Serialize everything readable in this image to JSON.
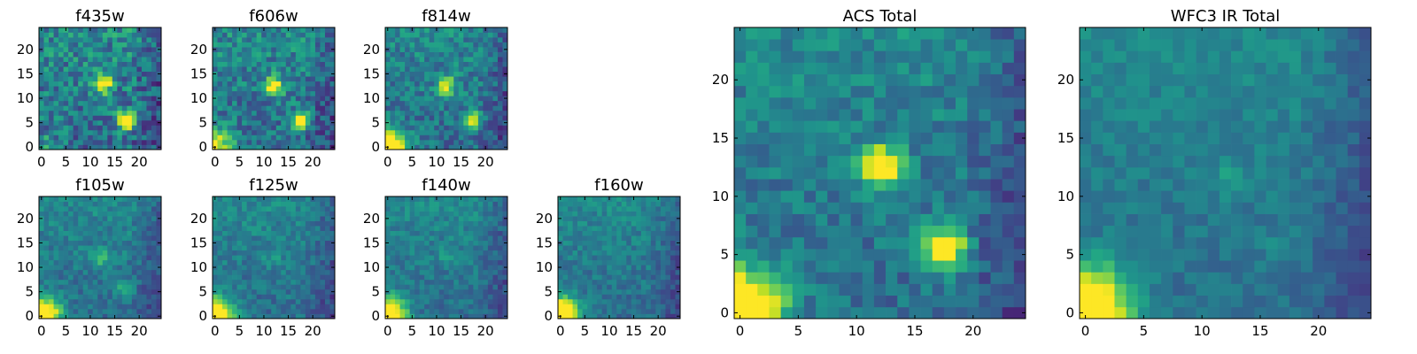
{
  "colormap": "viridis",
  "chart_data": [
    {
      "type": "heatmap",
      "title": "f435w",
      "size": 25,
      "ticks": [
        0,
        5,
        10,
        15,
        20
      ],
      "xlim": [
        0,
        24
      ],
      "ylim": [
        0,
        24
      ],
      "noise": 0.42,
      "corner": 0.15,
      "sources": [
        [
          12.5,
          13,
          0.8
        ],
        [
          17.5,
          5.5,
          0.95
        ]
      ]
    },
    {
      "type": "heatmap",
      "title": "f606w",
      "size": 25,
      "ticks": [
        0,
        5,
        10,
        15,
        20
      ],
      "xlim": [
        0,
        24
      ],
      "ylim": [
        0,
        24
      ],
      "noise": 0.36,
      "corner": 0.6,
      "sources": [
        [
          12,
          12.5,
          0.75
        ],
        [
          17.5,
          5.5,
          0.8
        ]
      ]
    },
    {
      "type": "heatmap",
      "title": "f814w",
      "size": 25,
      "ticks": [
        0,
        5,
        10,
        15,
        20
      ],
      "xlim": [
        0,
        24
      ],
      "ylim": [
        0,
        24
      ],
      "noise": 0.32,
      "corner": 0.9,
      "sources": [
        [
          12,
          12.5,
          0.6
        ],
        [
          17.5,
          5.5,
          0.6
        ]
      ]
    },
    {
      "type": "heatmap",
      "title": "f105w",
      "size": 25,
      "ticks": [
        0,
        5,
        10,
        15,
        20
      ],
      "xlim": [
        0,
        24
      ],
      "ylim": [
        0,
        24
      ],
      "noise": 0.22,
      "corner": 1.0,
      "sources": [
        [
          12,
          12,
          0.25
        ],
        [
          17,
          5.5,
          0.25
        ]
      ]
    },
    {
      "type": "heatmap",
      "title": "f125w",
      "size": 25,
      "ticks": [
        0,
        5,
        10,
        15,
        20
      ],
      "xlim": [
        0,
        24
      ],
      "ylim": [
        0,
        24
      ],
      "noise": 0.22,
      "corner": 1.0,
      "sources": [
        [
          12,
          12,
          0.12
        ]
      ]
    },
    {
      "type": "heatmap",
      "title": "f140w",
      "size": 25,
      "ticks": [
        0,
        5,
        10,
        15,
        20
      ],
      "xlim": [
        0,
        24
      ],
      "ylim": [
        0,
        24
      ],
      "noise": 0.2,
      "corner": 1.0,
      "sources": [
        [
          12,
          12,
          0.12
        ]
      ]
    },
    {
      "type": "heatmap",
      "title": "f160w",
      "size": 25,
      "ticks": [
        0,
        5,
        10,
        15,
        20
      ],
      "xlim": [
        0,
        24
      ],
      "ylim": [
        0,
        24
      ],
      "noise": 0.2,
      "corner": 1.0,
      "sources": []
    },
    {
      "type": "heatmap",
      "title": "ACS Total",
      "size": 25,
      "ticks": [
        0,
        5,
        10,
        15,
        20
      ],
      "xlim": [
        0,
        24
      ],
      "ylim": [
        0,
        24
      ],
      "noise": 0.25,
      "corner": 1.0,
      "sources": [
        [
          12,
          12.5,
          0.8
        ],
        [
          17.5,
          5.5,
          0.85
        ]
      ]
    },
    {
      "type": "heatmap",
      "title": "WFC3 IR Total",
      "size": 25,
      "ticks": [
        0,
        5,
        10,
        15,
        20
      ],
      "xlim": [
        0,
        24
      ],
      "ylim": [
        0,
        24
      ],
      "noise": 0.15,
      "corner": 1.0,
      "sources": [
        [
          12.5,
          11.5,
          0.12
        ],
        [
          16.5,
          5.5,
          0.08
        ]
      ]
    }
  ]
}
